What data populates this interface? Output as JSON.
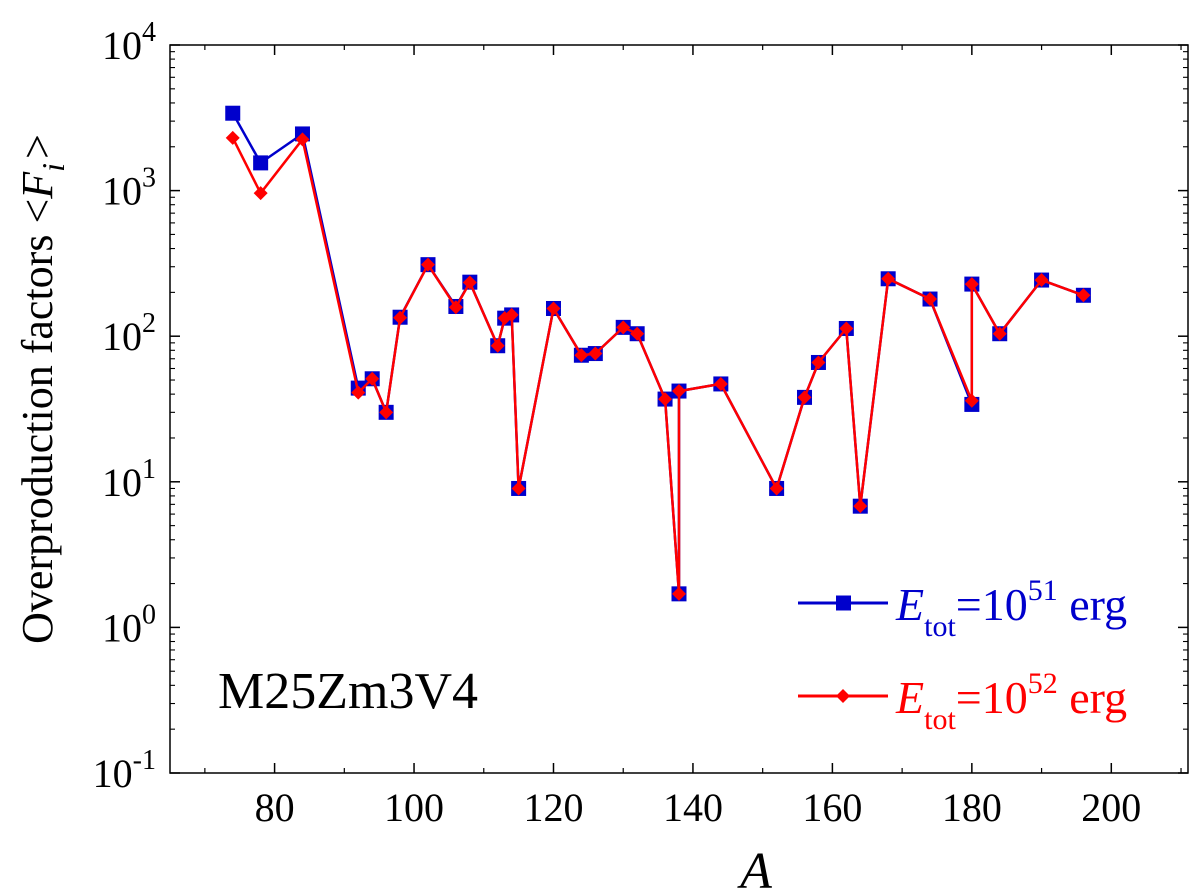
{
  "chart_data": {
    "type": "line",
    "yscale": "log",
    "title": "",
    "xlabel": "A",
    "ylabel": "Overproduction factors <F_i>",
    "ylabel_parts": {
      "main": "Overproduction factors  <",
      "var": "F",
      "sub": "i",
      "close": ">"
    },
    "xlim": [
      65,
      211
    ],
    "ylim": [
      0.1,
      10000
    ],
    "x_ticks": [
      80,
      100,
      120,
      140,
      160,
      180,
      200
    ],
    "x_minor_ticks": [
      70,
      90,
      110,
      130,
      150,
      170,
      190,
      210
    ],
    "y_ticks": [
      {
        "value": 0.1,
        "base": "10",
        "exp": "-1"
      },
      {
        "value": 1,
        "base": "10",
        "exp": "0"
      },
      {
        "value": 10,
        "base": "10",
        "exp": "1"
      },
      {
        "value": 100,
        "base": "10",
        "exp": "2"
      },
      {
        "value": 1000,
        "base": "10",
        "exp": "3"
      },
      {
        "value": 10000,
        "base": "10",
        "exp": "4"
      }
    ],
    "annotation": "M25Zm3V4",
    "legend_position": "bottom-right",
    "series": [
      {
        "name": "E_tot=10^51 erg",
        "label_parts": {
          "var": "E",
          "sub": "tot",
          "eq": "=10",
          "sup": "51",
          "unit": " erg"
        },
        "color": "#0000cc",
        "marker": "square",
        "x": [
          74,
          78,
          84,
          92,
          94,
          96,
          98,
          102,
          106,
          108,
          112,
          113,
          114,
          115,
          120,
          124,
          126,
          130,
          132,
          136,
          138,
          138,
          144,
          152,
          156,
          158,
          162,
          164,
          168,
          174,
          180,
          180,
          184,
          190,
          196
        ],
        "y": [
          3400,
          1550,
          2450,
          44,
          51,
          30,
          135,
          310,
          160,
          235,
          86,
          133,
          140,
          9,
          155,
          74,
          76,
          115,
          104,
          37,
          1.7,
          42,
          47,
          9,
          38,
          66,
          113,
          6.8,
          248,
          180,
          34,
          228,
          104,
          243,
          191
        ]
      },
      {
        "name": "E_tot=10^52 erg",
        "label_parts": {
          "var": "E",
          "sub": "tot",
          "eq": "=10",
          "sup": "52",
          "unit": " erg"
        },
        "color": "#ff0000",
        "marker": "diamond",
        "x": [
          74,
          78,
          84,
          92,
          94,
          96,
          98,
          102,
          106,
          108,
          112,
          113,
          114,
          115,
          120,
          124,
          126,
          130,
          132,
          136,
          138,
          138,
          144,
          152,
          156,
          158,
          162,
          164,
          168,
          174,
          180,
          180,
          184,
          190,
          196
        ],
        "y": [
          2300,
          960,
          2250,
          41,
          51,
          30,
          134,
          310,
          158,
          234,
          86,
          133,
          140,
          9,
          155,
          74,
          76,
          115,
          104,
          37,
          1.7,
          42,
          47,
          9,
          38,
          66,
          113,
          6.8,
          248,
          180,
          36,
          228,
          104,
          243,
          191
        ]
      }
    ]
  }
}
